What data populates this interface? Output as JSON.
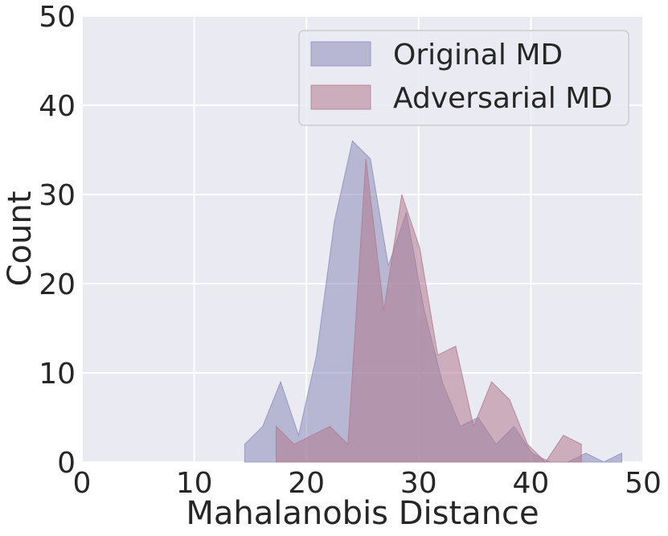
{
  "chart_data": {
    "type": "area",
    "title": "",
    "xlabel": "Mahalanobis Distance",
    "ylabel": "Count",
    "xlim": [
      0,
      50
    ],
    "ylim": [
      0,
      50
    ],
    "xticks": [
      0,
      10,
      20,
      30,
      40,
      50
    ],
    "yticks": [
      0,
      10,
      20,
      30,
      40,
      50
    ],
    "grid": true,
    "legend_position": "top-right",
    "background": "#eaeaf2",
    "series": [
      {
        "name": "Original MD",
        "color": "#8c8cba",
        "x": [
          14.5,
          16.1,
          17.7,
          19.3,
          20.9,
          22.5,
          24.1,
          25.7,
          27.3,
          28.9,
          30.5,
          32.1,
          33.7,
          35.3,
          36.9,
          38.5,
          40.1,
          41.7,
          43.3,
          44.9,
          46.5,
          48.1
        ],
        "y": [
          2,
          4,
          9,
          3,
          12,
          27,
          36,
          34,
          22,
          28,
          17,
          9,
          4,
          5,
          2,
          4,
          1,
          0,
          0,
          1,
          0,
          1
        ]
      },
      {
        "name": "Adversarial MD",
        "color": "#b07a8e",
        "x": [
          17.3,
          18.9,
          20.5,
          22.1,
          23.7,
          25.3,
          26.9,
          28.5,
          30.1,
          31.7,
          33.3,
          34.9,
          36.5,
          38.1,
          39.7,
          41.3,
          42.9,
          44.5
        ],
        "y": [
          4,
          2,
          3,
          4,
          2,
          34,
          17,
          30,
          24,
          12,
          13,
          4,
          9,
          7,
          2,
          0,
          3,
          2
        ]
      }
    ]
  }
}
